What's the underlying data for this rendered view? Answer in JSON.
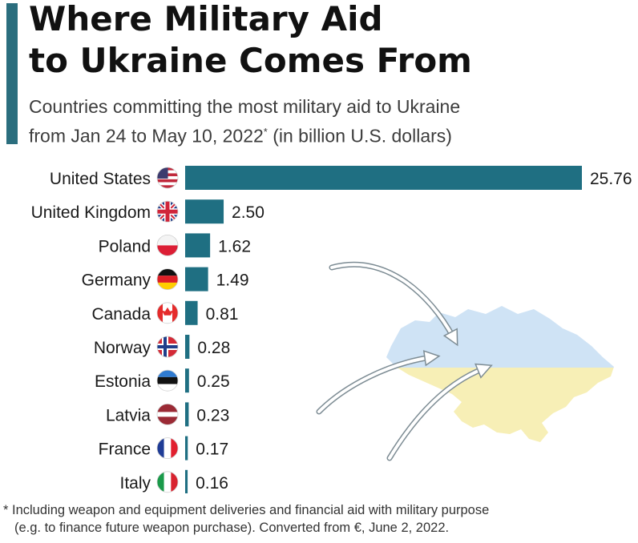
{
  "header": {
    "title_line1": "Where Military Aid",
    "title_line2": "to Ukraine Comes From",
    "subtitle_line1": "Countries committing the most military aid to Ukraine",
    "subtitle_line2_a": "from Jan 24 to May 10, 2022",
    "subtitle_mark": "*",
    "subtitle_line2_b": " (in billion U.S. dollars)"
  },
  "footnote": {
    "line1": "* Including weapon and equipment deliveries and financial aid with military purpose",
    "line2": "(e.g. to finance future weapon purchase). Converted from €, June 2, 2022."
  },
  "colors": {
    "bar": "#1f6f82",
    "accent": "#2b6e7e",
    "ukraine_blue": "#cfe3f5",
    "ukraine_yellow": "#f7efb6"
  },
  "chart_data": {
    "type": "bar",
    "orientation": "horizontal",
    "categories": [
      "United States",
      "United Kingdom",
      "Poland",
      "Germany",
      "Canada",
      "Norway",
      "Estonia",
      "Latvia",
      "France",
      "Italy"
    ],
    "values": [
      25.76,
      2.5,
      1.62,
      1.49,
      0.81,
      0.28,
      0.25,
      0.23,
      0.17,
      0.16
    ],
    "value_labels": [
      "25.76",
      "2.50",
      "1.62",
      "1.49",
      "0.81",
      "0.28",
      "0.25",
      "0.23",
      "0.17",
      "0.16"
    ],
    "flag_icons": [
      "us-flag-icon",
      "uk-flag-icon",
      "poland-flag-icon",
      "germany-flag-icon",
      "canada-flag-icon",
      "norway-flag-icon",
      "estonia-flag-icon",
      "latvia-flag-icon",
      "france-flag-icon",
      "italy-flag-icon"
    ],
    "xlim": [
      0,
      25.76
    ],
    "grid": false,
    "legend": "none",
    "decoration": "ukraine-map-with-arrows"
  }
}
